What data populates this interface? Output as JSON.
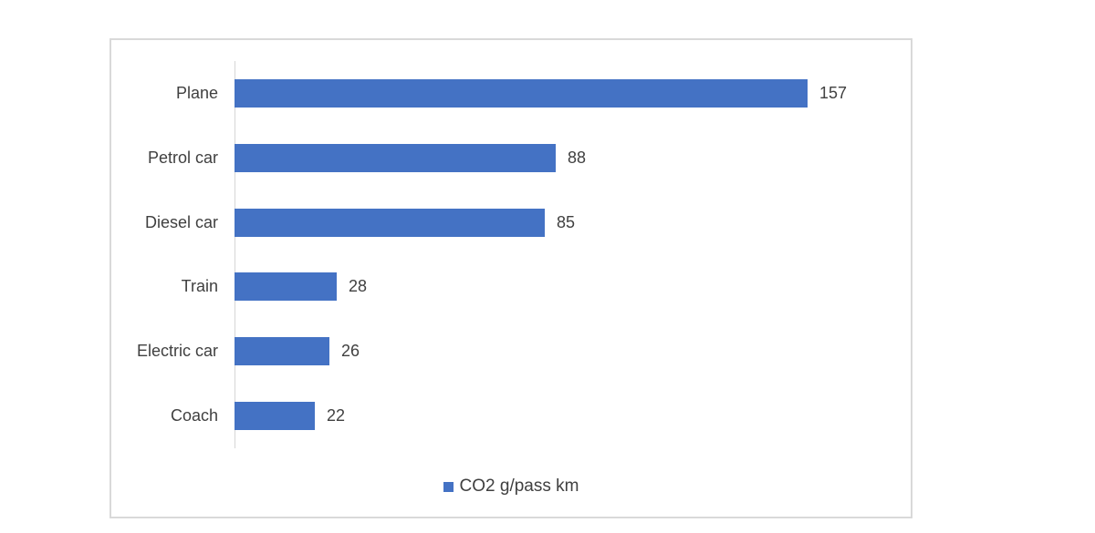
{
  "chart_data": {
    "type": "bar",
    "orientation": "horizontal",
    "title": "",
    "xlabel": "",
    "ylabel": "",
    "categories": [
      "Plane",
      "Petrol car",
      "Diesel car",
      "Train",
      "Electric car",
      "Coach"
    ],
    "values": [
      157,
      88,
      85,
      28,
      26,
      22
    ],
    "data_labels": [
      157,
      88,
      85,
      28,
      26,
      22
    ],
    "xlim": [
      0,
      160
    ],
    "grid": false,
    "legend": [
      "CO2 g/pass km"
    ],
    "legend_position": "bottom",
    "bar_color": "#4472c4",
    "axis_line_color": "#d6d6d6",
    "border_color": "#d9d9d9",
    "text_color": "#404040"
  }
}
